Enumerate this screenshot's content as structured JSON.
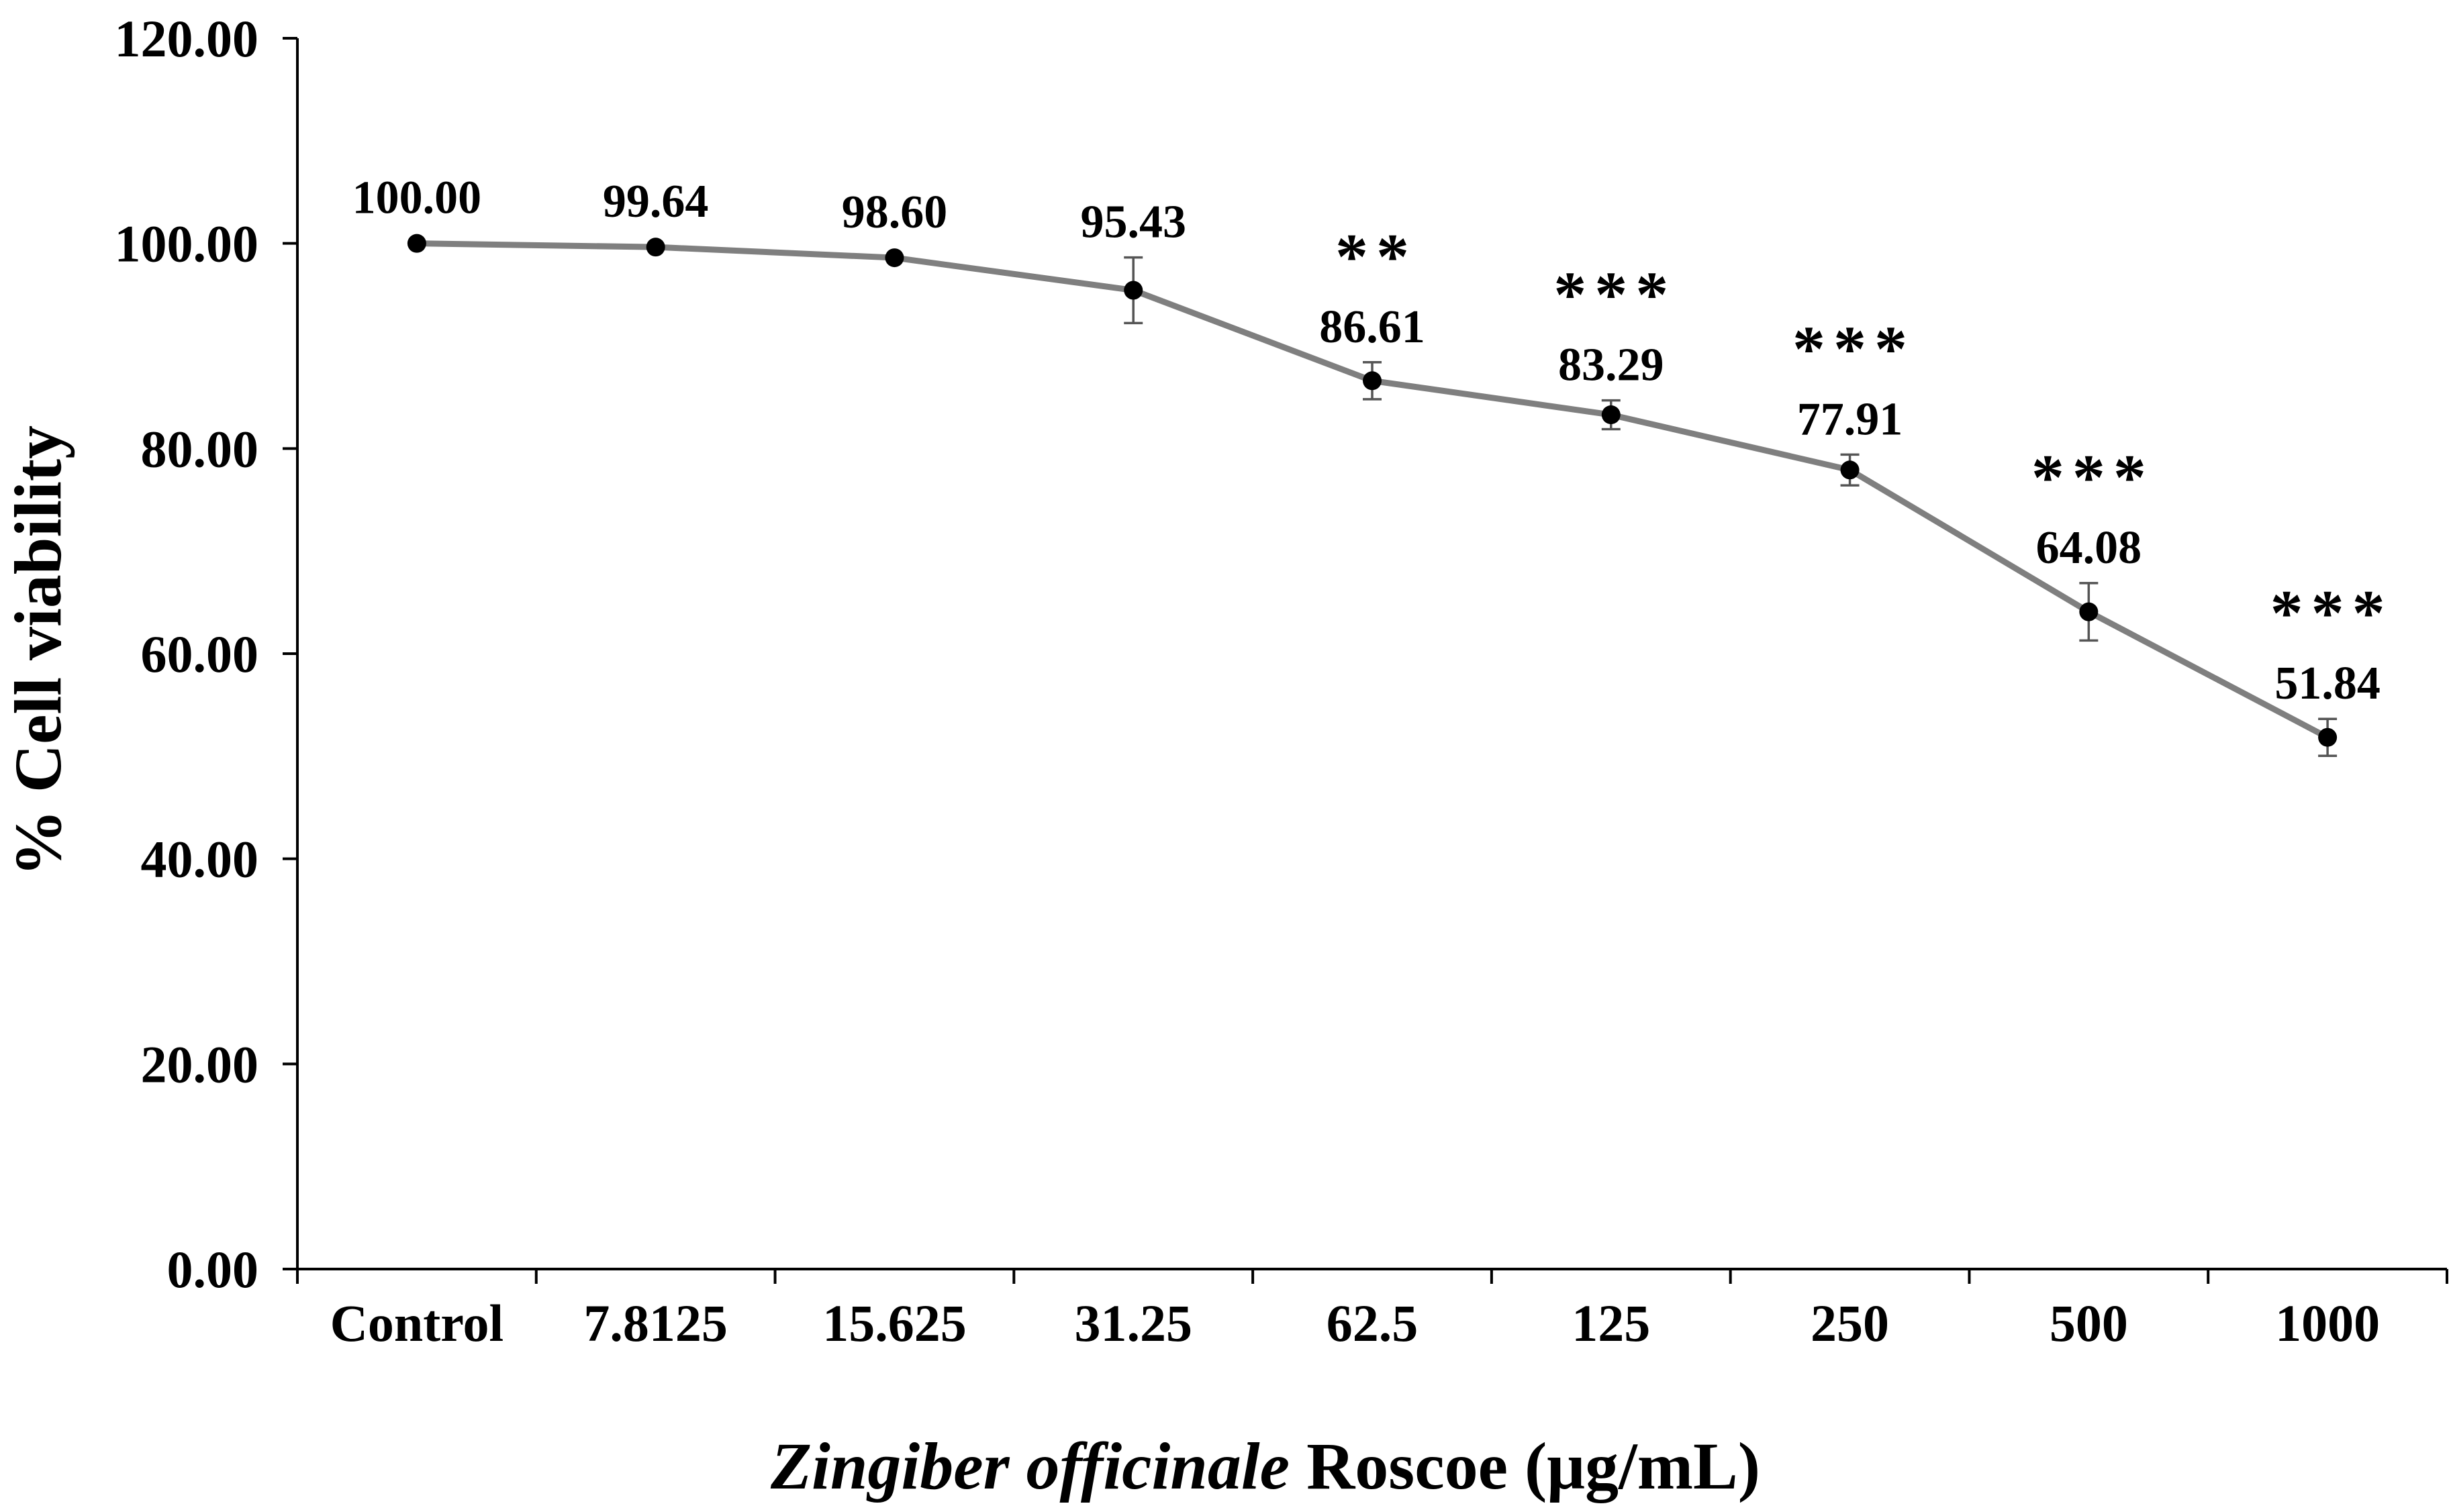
{
  "chart_data": {
    "type": "line",
    "title": "",
    "categories": [
      "Control",
      "7.8125",
      "15.625",
      "31.25",
      "62.5",
      "125",
      "250",
      "500",
      "1000"
    ],
    "series": [
      {
        "name": "% Cell viability",
        "values": [
          100.0,
          99.64,
          98.6,
          95.43,
          86.61,
          83.29,
          77.91,
          64.08,
          51.84
        ],
        "errors": [
          0.0,
          0.0,
          0.0,
          3.2,
          1.8,
          1.4,
          1.5,
          2.8,
          1.8
        ],
        "value_labels": [
          "100.00",
          "99.64",
          "98.60",
          "95.43",
          "86.61",
          "83.29",
          "77.91",
          "64.08",
          "51.84"
        ],
        "significance": [
          "",
          "",
          "",
          "",
          "**",
          "***",
          "***",
          "***",
          "***"
        ]
      }
    ],
    "ylim": [
      0,
      120
    ],
    "yticks": [
      0,
      20,
      40,
      60,
      80,
      100,
      120
    ],
    "ytick_labels": [
      "0.00",
      "20.00",
      "40.00",
      "60.00",
      "80.00",
      "100.00",
      "120.00"
    ],
    "ylabel": "% Cell viability",
    "xlabel_italic": "Zingiber officinale",
    "xlabel_rest": " Roscoe (μg/mL)",
    "grid": false,
    "legend": "none",
    "colors": {
      "line": "#7f7f7f",
      "marker": "#000000",
      "error_bar": "#555555"
    }
  }
}
